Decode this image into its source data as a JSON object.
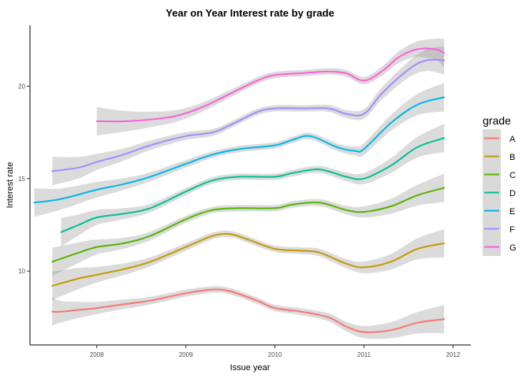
{
  "chart_data": {
    "type": "line",
    "title": "Year on Year Interest rate by grade",
    "xlabel": "Issue year",
    "ylabel": "Interest rate",
    "xlim": [
      2007.25,
      2012.2
    ],
    "ylim": [
      6,
      23.3
    ],
    "x_ticks": [
      2008,
      2009,
      2010,
      2011,
      2012
    ],
    "y_ticks": [
      10,
      15,
      20
    ],
    "grid": false,
    "confidence_band": true,
    "legend": {
      "title": "grade",
      "position": "right"
    },
    "series": [
      {
        "name": "A",
        "color": "#F8766D",
        "x": [
          2007.5,
          2007.6,
          2007.8,
          2008.0,
          2008.3,
          2008.6,
          2009.0,
          2009.3,
          2009.5,
          2009.8,
          2010.0,
          2010.3,
          2010.6,
          2010.8,
          2011.0,
          2011.3,
          2011.6,
          2011.9
        ],
        "y": [
          7.8,
          7.8,
          7.9,
          8.0,
          8.2,
          8.4,
          8.8,
          9.0,
          8.9,
          8.4,
          8.0,
          7.8,
          7.5,
          7.0,
          6.7,
          6.8,
          7.2,
          7.4
        ]
      },
      {
        "name": "B",
        "color": "#C49A00",
        "x": [
          2007.5,
          2007.8,
          2008.0,
          2008.3,
          2008.6,
          2009.0,
          2009.3,
          2009.5,
          2009.7,
          2010.0,
          2010.3,
          2010.5,
          2010.8,
          2011.0,
          2011.3,
          2011.6,
          2011.9
        ],
        "y": [
          9.2,
          9.6,
          9.8,
          10.1,
          10.5,
          11.3,
          11.9,
          12.0,
          11.7,
          11.2,
          11.1,
          11.0,
          10.4,
          10.2,
          10.5,
          11.2,
          11.5
        ]
      },
      {
        "name": "C",
        "color": "#53B400",
        "x": [
          2007.5,
          2007.8,
          2008.0,
          2008.3,
          2008.6,
          2009.0,
          2009.3,
          2009.6,
          2010.0,
          2010.2,
          2010.5,
          2010.8,
          2011.0,
          2011.3,
          2011.6,
          2011.9
        ],
        "y": [
          10.5,
          11.0,
          11.3,
          11.5,
          11.9,
          12.8,
          13.3,
          13.4,
          13.4,
          13.6,
          13.7,
          13.3,
          13.2,
          13.5,
          14.1,
          14.5
        ]
      },
      {
        "name": "D",
        "color": "#00C094",
        "x": [
          2007.6,
          2007.8,
          2008.0,
          2008.3,
          2008.6,
          2009.0,
          2009.3,
          2009.6,
          2010.0,
          2010.2,
          2010.5,
          2010.8,
          2011.0,
          2011.3,
          2011.6,
          2011.9
        ],
        "y": [
          12.1,
          12.5,
          12.9,
          13.1,
          13.4,
          14.3,
          14.9,
          15.1,
          15.1,
          15.3,
          15.5,
          15.1,
          15.0,
          15.7,
          16.7,
          17.2
        ]
      },
      {
        "name": "E",
        "color": "#00B6EB",
        "x": [
          2007.3,
          2007.6,
          2008.0,
          2008.3,
          2008.6,
          2009.0,
          2009.3,
          2009.6,
          2010.0,
          2010.2,
          2010.4,
          2010.7,
          2010.9,
          2011.0,
          2011.3,
          2011.6,
          2011.9
        ],
        "y": [
          13.7,
          13.9,
          14.4,
          14.7,
          15.1,
          15.8,
          16.3,
          16.6,
          16.8,
          17.1,
          17.3,
          16.7,
          16.5,
          16.6,
          18.0,
          19.0,
          19.4
        ]
      },
      {
        "name": "F",
        "color": "#A58AFF",
        "x": [
          2007.5,
          2007.8,
          2008.0,
          2008.3,
          2008.6,
          2009.0,
          2009.3,
          2009.5,
          2009.8,
          2010.0,
          2010.3,
          2010.6,
          2010.8,
          2011.0,
          2011.2,
          2011.5,
          2011.7,
          2011.9
        ],
        "y": [
          15.4,
          15.6,
          15.9,
          16.3,
          16.8,
          17.3,
          17.5,
          17.9,
          18.6,
          18.8,
          18.8,
          18.8,
          18.5,
          18.5,
          19.6,
          20.9,
          21.4,
          21.4
        ]
      },
      {
        "name": "G",
        "color": "#FB61D7",
        "x": [
          2008.0,
          2008.3,
          2008.6,
          2008.9,
          2009.2,
          2009.5,
          2009.8,
          2010.0,
          2010.3,
          2010.6,
          2010.8,
          2011.0,
          2011.2,
          2011.4,
          2011.6,
          2011.8,
          2011.9
        ],
        "y": [
          18.1,
          18.1,
          18.2,
          18.4,
          18.9,
          19.6,
          20.3,
          20.6,
          20.7,
          20.8,
          20.7,
          20.3,
          20.8,
          21.6,
          22.0,
          22.0,
          21.8
        ]
      }
    ]
  }
}
